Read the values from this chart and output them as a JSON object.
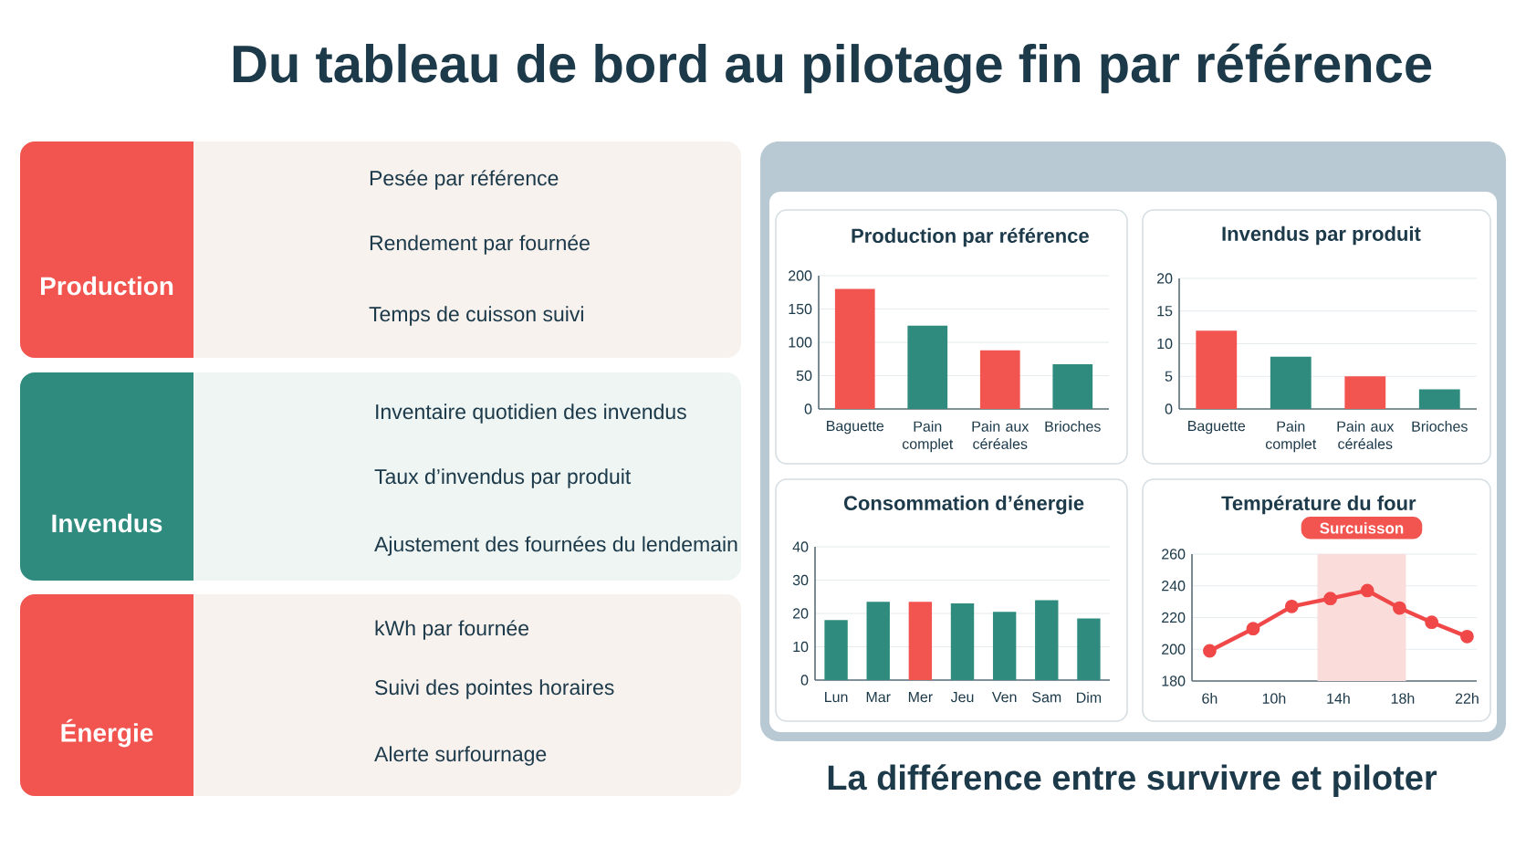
{
  "chart_data": [
    {
      "type": "other",
      "title": "Du tableau de bord au pilotage fin par référence",
      "annotations": [
        "Production",
        "Pesée par référence",
        "Rendement par fournée",
        "Temps de cuisson suivi",
        "Invendus",
        "Inventaire quotidien des invendus",
        "Taux d’invendus par produit",
        "Ajustement des fournées du lendemain",
        "Énergie",
        "kWh par fournée",
        "Suivi des pointes horaires",
        "Alerte surfournage",
        "La différence entre survivre et piloter"
      ]
    },
    {
      "type": "bar",
      "title": "Production par référence",
      "categories": [
        "Baguette",
        "Pain complet",
        "Pain aux céréales",
        "Brioches"
      ],
      "values": [
        180,
        125,
        88,
        67
      ],
      "colors": [
        "#f25450",
        "#2e8b7e",
        "#f25450",
        "#2e8b7e"
      ],
      "ylim": [
        0,
        200
      ],
      "yticks": [
        0,
        50,
        100,
        150,
        200
      ],
      "grid": "y"
    },
    {
      "type": "bar",
      "title": "Invendus par produit",
      "categories": [
        "Baguette",
        "Pain complet",
        "Pain aux céréales",
        "Brioches"
      ],
      "values": [
        12,
        8,
        5,
        3
      ],
      "colors": [
        "#f25450",
        "#2e8b7e",
        "#f25450",
        "#2e8b7e"
      ],
      "ylim": [
        0,
        20
      ],
      "yticks": [
        0,
        5,
        10,
        15,
        20
      ],
      "grid": "y"
    },
    {
      "type": "bar",
      "title": "Consommation d’énergie",
      "categories": [
        "Lun",
        "Mar",
        "Mer",
        "Jeu",
        "Ven",
        "Sam",
        "Dim"
      ],
      "values": [
        18,
        23.5,
        23.5,
        23,
        20.5,
        24,
        18.5
      ],
      "colors": [
        "#2e8b7e",
        "#2e8b7e",
        "#f25450",
        "#2e8b7e",
        "#2e8b7e",
        "#2e8b7e",
        "#2e8b7e"
      ],
      "ylim": [
        0,
        40
      ],
      "yticks": [
        0,
        10,
        20,
        30,
        40
      ],
      "grid": "y"
    },
    {
      "type": "line",
      "title": "Température du four",
      "x": [
        6,
        8.7,
        11.1,
        13.5,
        15.8,
        17.8,
        19.8,
        22
      ],
      "values": [
        199,
        213,
        227,
        232,
        237,
        226,
        217,
        208
      ],
      "color": "#f04848",
      "marker": "circle",
      "line_style": "solid",
      "xlim": [
        4.9,
        22.6
      ],
      "ylim": [
        180,
        260
      ],
      "xticks": [
        {
          "value": 6,
          "label": "6h"
        },
        {
          "value": 10,
          "label": "10h"
        },
        {
          "value": 14,
          "label": "14h"
        },
        {
          "value": 18,
          "label": "18h"
        },
        {
          "value": 22,
          "label": "22h"
        }
      ],
      "yticks": [
        180,
        200,
        220,
        240,
        260
      ],
      "grid": "y",
      "bands": [
        {
          "axis": "x",
          "from": 12.7,
          "to": 18.2,
          "label": "Surcuisson",
          "color": "#fadcda"
        }
      ]
    }
  ]
}
